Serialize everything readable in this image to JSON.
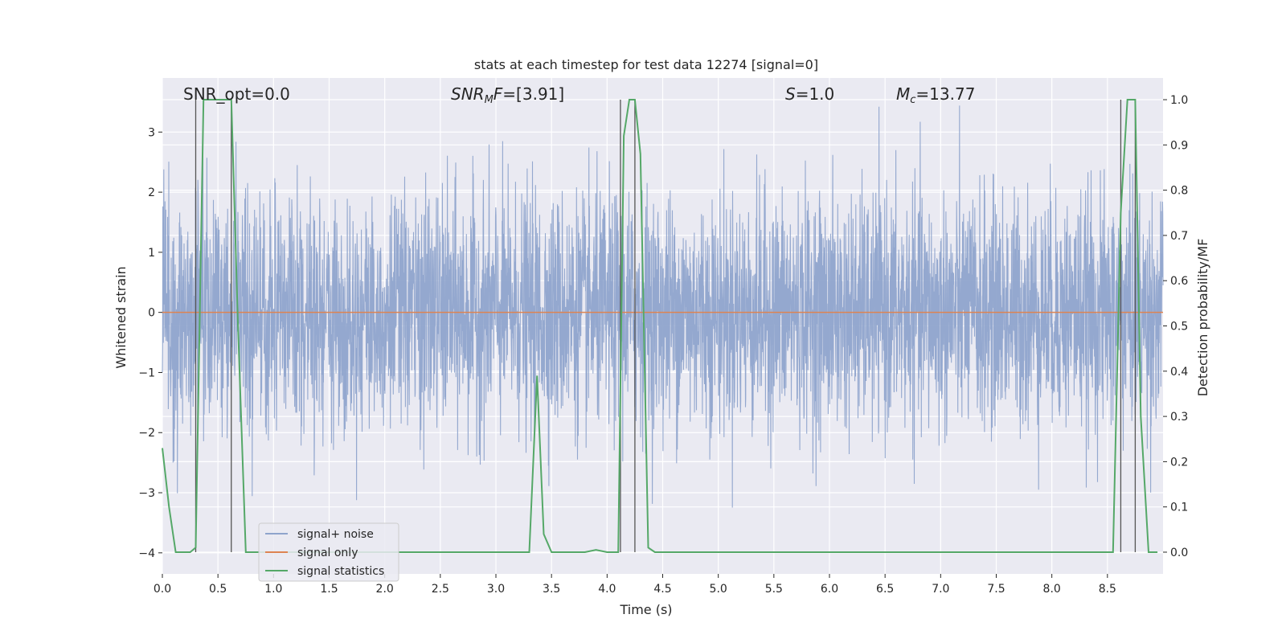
{
  "chart_data": {
    "type": "line",
    "title": "stats at each timestep for test data 12274 [signal=0]",
    "xlabel": "Time (s)",
    "ylabel": "Whitened strain",
    "y2label": "Detection probability/MF",
    "xlim": [
      0,
      9.0
    ],
    "ylim": [
      -4.35,
      3.9
    ],
    "y2lim": [
      -0.048,
      1.048
    ],
    "x_ticks": [
      "0.0",
      "0.5",
      "1.0",
      "1.5",
      "2.0",
      "2.5",
      "3.0",
      "3.5",
      "4.0",
      "4.5",
      "5.0",
      "5.5",
      "6.0",
      "6.5",
      "7.0",
      "7.5",
      "8.0",
      "8.5"
    ],
    "y_ticks": [
      "3",
      "2",
      "1",
      "0",
      "−1",
      "−2",
      "−3",
      "−4"
    ],
    "y2_ticks": [
      "1.0",
      "0.9",
      "0.8",
      "0.7",
      "0.6",
      "0.5",
      "0.4",
      "0.3",
      "0.2",
      "0.1",
      "0.0"
    ],
    "grid": true,
    "legend_position": "lower-left",
    "annotations": [
      {
        "id": "snr-opt",
        "text": "SNR_opt=0.0"
      },
      {
        "id": "snr-mf",
        "text": "SNR_MF=[3.91]"
      },
      {
        "id": "s-value",
        "text": "S=1.0"
      },
      {
        "id": "mc-value",
        "text": "M_c=13.77"
      }
    ],
    "series": [
      {
        "name": "signal+ noise",
        "color": "#8fa4cc",
        "axis": "left",
        "noise_envelope": {
          "typical_abs": 1.2,
          "max": 3.5,
          "min": -3.75
        },
        "description_values": {
          "x_start": 0,
          "x_end": 9.0
        }
      },
      {
        "name": "signal only",
        "color": "#dd8452",
        "axis": "left",
        "x": [
          0,
          9.0
        ],
        "y": [
          0,
          0
        ]
      },
      {
        "name": "signal statistics",
        "color": "#55a868",
        "axis": "right",
        "x": [
          0,
          0.06,
          0.12,
          0.25,
          0.3,
          0.37,
          0.43,
          0.5,
          0.56,
          0.62,
          0.68,
          0.75,
          1.0,
          2.0,
          3.0,
          3.3,
          3.37,
          3.43,
          3.5,
          3.6,
          3.8,
          3.9,
          4.0,
          4.05,
          4.1,
          4.15,
          4.2,
          4.25,
          4.3,
          4.37,
          4.43,
          5.0,
          6.0,
          7.0,
          8.0,
          8.55,
          8.62,
          8.68,
          8.75,
          8.8,
          8.87,
          8.95
        ],
        "y": [
          0.23,
          0.1,
          0.0,
          0.0,
          0.01,
          1.0,
          1.0,
          1.0,
          1.0,
          1.0,
          0.5,
          0.0,
          0.0,
          0.0,
          0.0,
          0.0,
          0.39,
          0.04,
          0.0,
          0.0,
          0.0,
          0.005,
          0.0,
          0.0,
          0.0,
          0.92,
          1.0,
          1.0,
          0.88,
          0.01,
          0.0,
          0.0,
          0.0,
          0.0,
          0.0,
          0.0,
          0.75,
          1.0,
          1.0,
          0.3,
          0.0,
          0.0
        ]
      }
    ],
    "vertical_markers": [
      {
        "x": 0.3,
        "y2_top": 1.0
      },
      {
        "x": 0.62,
        "y2_top": 1.0
      },
      {
        "x": 4.12,
        "y2_top": 1.0
      },
      {
        "x": 4.25,
        "y2_top": 1.0
      },
      {
        "x": 8.62,
        "y2_top": 1.0
      },
      {
        "x": 8.75,
        "y2_top": 1.0
      }
    ],
    "legend": [
      {
        "label": "signal+ noise",
        "color": "#8fa4cc"
      },
      {
        "label": "signal only",
        "color": "#dd8452"
      },
      {
        "label": "signal statistics",
        "color": "#55a868"
      }
    ]
  }
}
